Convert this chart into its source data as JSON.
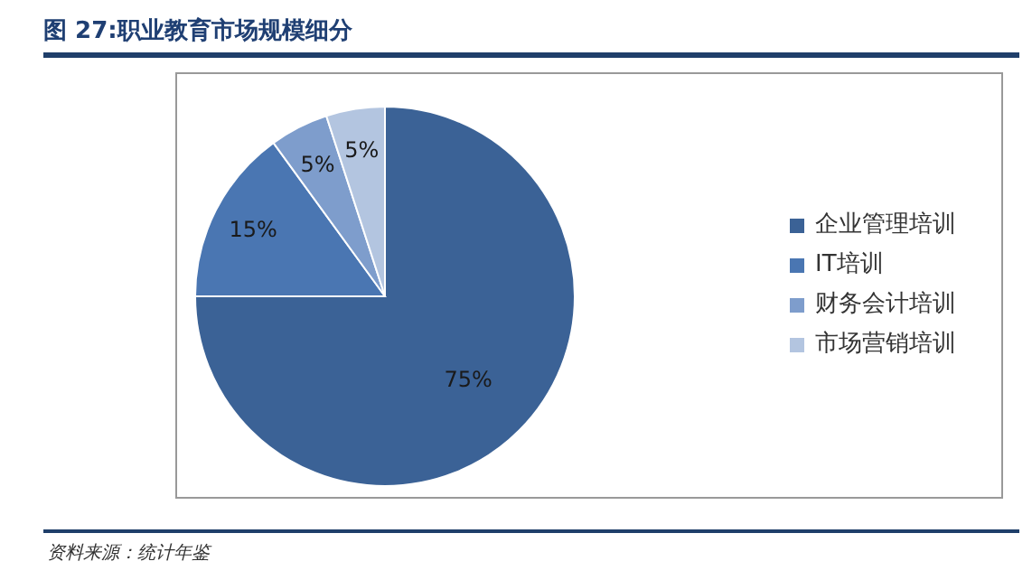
{
  "chart_data": {
    "type": "pie",
    "title": "图 27:职业教育市场规模细分",
    "categories": [
      "企业管理培训",
      "IT培训",
      "财务会计培训",
      "市场营销培训"
    ],
    "values": [
      75,
      15,
      5,
      5
    ],
    "colors": [
      "#3b6296",
      "#4a76b2",
      "#7e9dcc",
      "#b3c5e0"
    ],
    "value_labels": [
      "75%",
      "15%",
      "5%",
      "5%"
    ],
    "legend": "right",
    "annotations": [
      "资料来源：统计年鉴"
    ]
  }
}
